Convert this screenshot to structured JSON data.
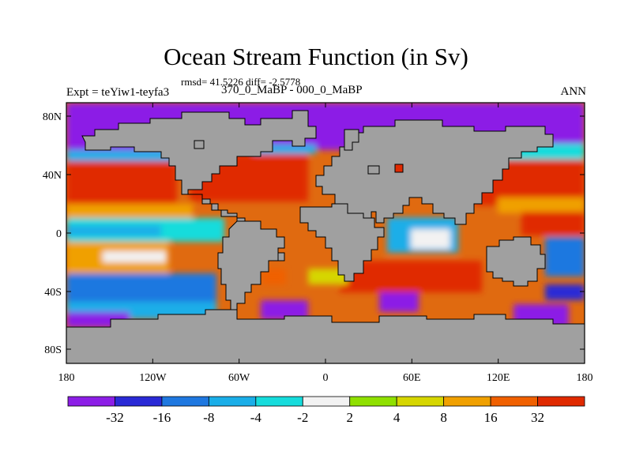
{
  "title": "Ocean Stream Function (in Sv)",
  "stats": "rmsd= 41.5226 diff= -2.5778",
  "experiment": "Expt = teYiw1-teyfa3",
  "period": "370_0_MaBP - 000_0_MaBP",
  "season": "ANN",
  "axes": {
    "lat_ticks": [
      "80N",
      "40N",
      "0",
      "40S",
      "80S"
    ],
    "lon_ticks": [
      "180",
      "120W",
      "60W",
      "0",
      "60E",
      "120E",
      "180"
    ]
  },
  "colorbar": {
    "labels": [
      "-32",
      "-16",
      "-8",
      "-4",
      "-2",
      "2",
      "4",
      "8",
      "16",
      "32"
    ],
    "colors": [
      "#8c1ee6",
      "#2a2ad6",
      "#1f78e0",
      "#1aaee8",
      "#16dcdc",
      "#f2f2f2",
      "#8fe000",
      "#d6d600",
      "#f0a000",
      "#f06000",
      "#e02a00"
    ]
  },
  "land_color": "#a0a0a0"
}
